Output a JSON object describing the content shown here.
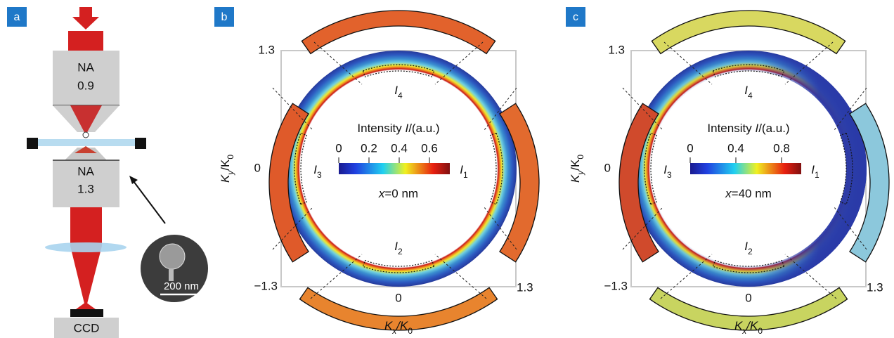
{
  "panels": [
    {
      "label": "a",
      "objectives": [
        {
          "name": "NA",
          "value": "0.9"
        },
        {
          "name": "NA",
          "value": "1.3"
        }
      ],
      "inset_scale": "200 nm",
      "detector": "CCD"
    },
    {
      "label": "b",
      "ticks": {
        "y_top": "1.3",
        "y_mid": "0",
        "y_bottom": "−1.3",
        "x_mid": "0",
        "x_right": "1.3"
      },
      "y_axis_label": [
        "K",
        "y",
        "/K",
        "0"
      ],
      "x_axis_label": [
        "K",
        "x",
        "/K",
        "0"
      ],
      "colorbar_title": [
        "Intensity ",
        "I",
        "/(a.u.)"
      ],
      "colorbar_ticks": [
        "0",
        "0.2",
        "0.4",
        "0.6"
      ],
      "position": [
        "x",
        "=0 nm"
      ],
      "regions": [
        [
          "I",
          "1"
        ],
        [
          "I",
          "2"
        ],
        [
          "I",
          "3"
        ],
        [
          "I",
          "4"
        ]
      ]
    },
    {
      "label": "c",
      "ticks": {
        "y_top": "1.3",
        "y_mid": "0",
        "y_bottom": "−1.3",
        "x_mid": "0",
        "x_right": "1.3"
      },
      "y_axis_label": [
        "K",
        "y",
        "/K",
        "0"
      ],
      "x_axis_label": [
        "K",
        "x",
        "/K",
        "0"
      ],
      "colorbar_title": [
        "Intensity ",
        "I",
        "/(a.u.)"
      ],
      "colorbar_ticks": [
        "0",
        "0.4",
        "0.8"
      ],
      "position": [
        "x",
        "=40 nm"
      ],
      "regions": [
        [
          "I",
          "1"
        ],
        [
          "I",
          "2"
        ],
        [
          "I",
          "3"
        ],
        [
          "I",
          "4"
        ]
      ]
    }
  ]
}
